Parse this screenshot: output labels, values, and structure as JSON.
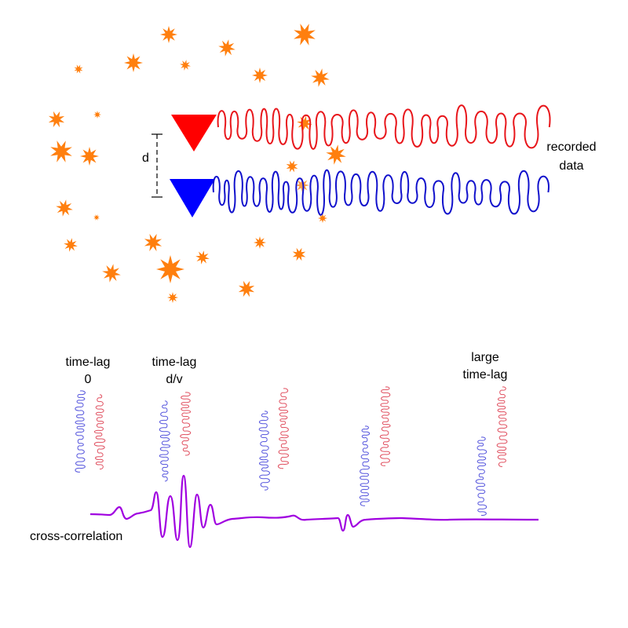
{
  "labels": {
    "distance": "d",
    "recorded_line1": "recorded",
    "recorded_line2": "data",
    "lag0_line1": "time-lag",
    "lag0_line2": "0",
    "lagdv_line1": "time-lag",
    "lagdv_line2": "d/v",
    "large_line1": "large",
    "large_line2": "time-lag",
    "xcorr": "cross-correlation"
  },
  "colors": {
    "station_a": "#ff0000",
    "station_b": "#0000ff",
    "trace_a": "#e8161b",
    "trace_b": "#1111cc",
    "small_trace_a": "#e05060",
    "small_trace_b": "#5555dd",
    "source": "#ff7f0e",
    "xcorr": "#a000e0"
  },
  "icons": {
    "station": "triangle-receiver-icon",
    "source": "star-burst-icon"
  }
}
